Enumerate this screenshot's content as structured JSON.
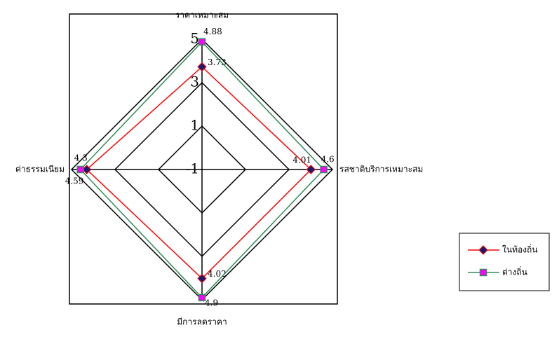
{
  "chart_data": {
    "type": "radar",
    "categories": [
      "ราคาเหมาะสม",
      "รสชาติบริการเหมาะสม",
      "มีการลดราคา",
      "ค่าธรรมเนียม"
    ],
    "series": [
      {
        "name": "ในท้องถิ่น",
        "color": "#ff0000",
        "marker_color": "#1a1a6e",
        "marker": "diamond",
        "values": [
          3.73,
          4.01,
          4.02,
          4.3
        ]
      },
      {
        "name": "ต่างถิ่น",
        "color": "#2e8b57",
        "marker_color": "#ff00ff",
        "marker": "square",
        "values": [
          4.88,
          4.6,
          4.9,
          4.59
        ]
      }
    ],
    "rlim": [
      -1,
      5
    ],
    "rticks": [
      -1,
      1,
      3,
      5
    ],
    "grid": true
  }
}
